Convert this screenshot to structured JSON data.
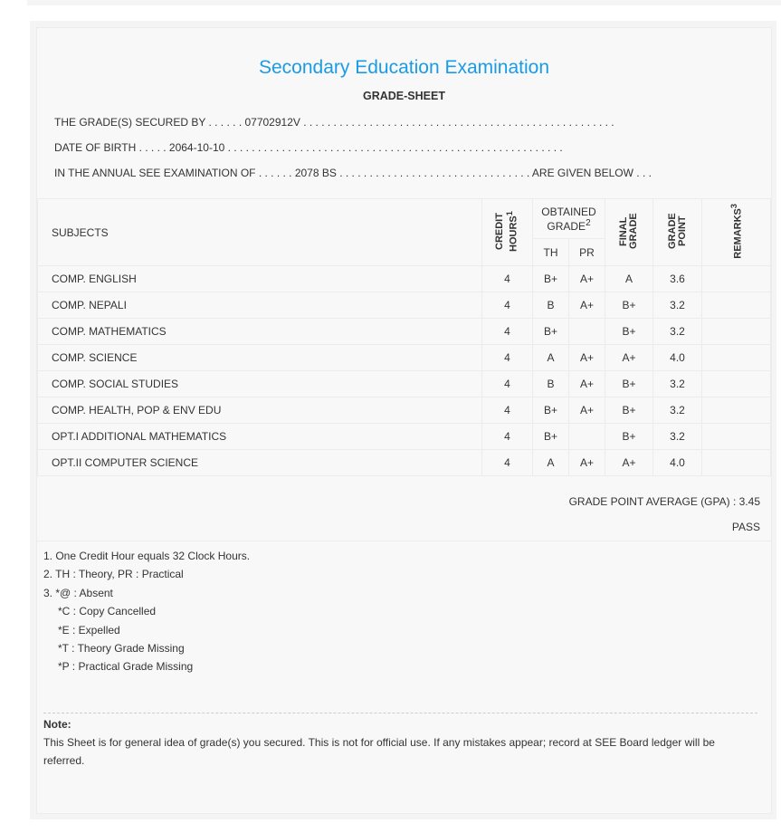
{
  "title": "Secondary Education Examination",
  "subtitle": "GRADE-SHEET",
  "info": {
    "secured_by": "THE GRADE(S) SECURED BY . . . . . . 07702912V . . . . . . . . . . . . . . . . . . . . . . . . . . . . . . . . . . . . . . . . . . . . . . . . . . . .",
    "dob": "DATE OF BIRTH . . . . . 2064-10-10 . . . . . . . . . . . . . . . . . . . . . . . . . . . . . . . . . . . . . . . . . . . . . . . . . . . . . . . .",
    "exam": "IN THE ANNUAL SEE EXAMINATION OF . . . . . . 2078 BS . . . . . . . . . . . . . . . . . . . . . . . . . . . . . . . . ARE GIVEN BELOW . . ."
  },
  "table": {
    "headers": {
      "subjects": "SUBJECTS",
      "credit_hours": "CREDIT HOURS",
      "credit_sup": "1",
      "obtained_grade": "OBTAINED GRADE",
      "obtained_sup": "2",
      "th": "TH",
      "pr": "PR",
      "final_grade": "FINAL GRADE",
      "grade_point": "GRADE POINT",
      "remarks": "REMARKS",
      "remarks_sup": "3"
    },
    "rows": [
      {
        "subject": "COMP. ENGLISH",
        "credit": "4",
        "th": "B+",
        "pr": "A+",
        "final": "A",
        "point": "3.6",
        "remarks": ""
      },
      {
        "subject": "COMP. NEPALI",
        "credit": "4",
        "th": "B",
        "pr": "A+",
        "final": "B+",
        "point": "3.2",
        "remarks": ""
      },
      {
        "subject": "COMP. MATHEMATICS",
        "credit": "4",
        "th": "B+",
        "pr": "",
        "final": "B+",
        "point": "3.2",
        "remarks": ""
      },
      {
        "subject": "COMP. SCIENCE",
        "credit": "4",
        "th": "A",
        "pr": "A+",
        "final": "A+",
        "point": "4.0",
        "remarks": ""
      },
      {
        "subject": "COMP. SOCIAL STUDIES",
        "credit": "4",
        "th": "B",
        "pr": "A+",
        "final": "B+",
        "point": "3.2",
        "remarks": ""
      },
      {
        "subject": "COMP. HEALTH, POP & ENV EDU",
        "credit": "4",
        "th": "B+",
        "pr": "A+",
        "final": "B+",
        "point": "3.2",
        "remarks": ""
      },
      {
        "subject": "OPT.I ADDITIONAL MATHEMATICS",
        "credit": "4",
        "th": "B+",
        "pr": "",
        "final": "B+",
        "point": "3.2",
        "remarks": ""
      },
      {
        "subject": "OPT.II COMPUTER SCIENCE",
        "credit": "4",
        "th": "A",
        "pr": "A+",
        "final": "A+",
        "point": "4.0",
        "remarks": ""
      }
    ]
  },
  "gpa": "GRADE POINT AVERAGE (GPA) : 3.45",
  "result": "PASS",
  "footnotes": [
    "1. One Credit Hour equals 32 Clock Hours.",
    "2. TH : Theory, PR : Practical",
    "3. *@ : Absent",
    "*C : Copy Cancelled",
    "*E : Expelled",
    "*T : Theory Grade Missing",
    "*P : Practical Grade Missing"
  ],
  "note": {
    "label": "Note:",
    "text": "This Sheet is for general idea of grade(s) you secured. This is not for official use. If any mistakes appear; record at SEE Board ledger will be referred."
  }
}
